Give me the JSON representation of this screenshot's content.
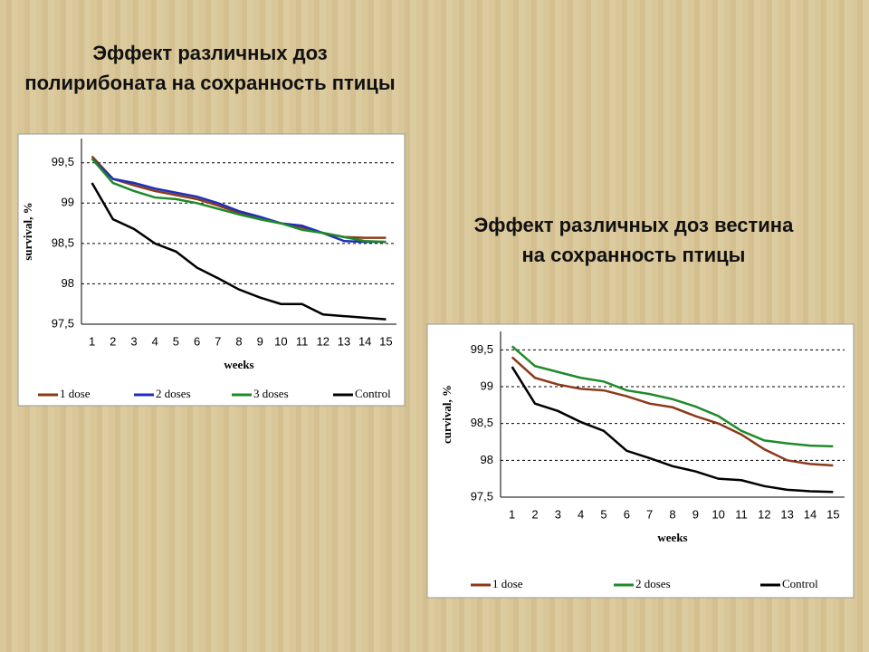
{
  "chart_data": [
    {
      "type": "line",
      "title": "Эффект различных  доз полирибоната на сохранность птицы",
      "x_label": "weeks",
      "y_label": "survival, %",
      "categories": [
        "1",
        "2",
        "3",
        "4",
        "5",
        "6",
        "7",
        "8",
        "9",
        "10",
        "11",
        "12",
        "13",
        "14",
        "15"
      ],
      "series": [
        {
          "name": "1 dose",
          "color": "#8b3a1a",
          "values": [
            99.58,
            99.3,
            99.22,
            99.15,
            99.1,
            99.05,
            98.97,
            98.88,
            98.8,
            98.75,
            98.7,
            98.63,
            98.58,
            98.57,
            98.57
          ]
        },
        {
          "name": "2 doses",
          "color": "#1f2fb8",
          "values": [
            99.55,
            99.3,
            99.25,
            99.18,
            99.13,
            99.08,
            99.0,
            98.9,
            98.83,
            98.75,
            98.72,
            98.63,
            98.53,
            98.52,
            98.52
          ]
        },
        {
          "name": "3 doses",
          "color": "#1f8a2a",
          "values": [
            99.55,
            99.25,
            99.15,
            99.07,
            99.05,
            99.0,
            98.93,
            98.86,
            98.8,
            98.75,
            98.67,
            98.63,
            98.58,
            98.53,
            98.52
          ]
        },
        {
          "name": "Control",
          "color": "#000000",
          "values": [
            99.25,
            98.8,
            98.68,
            98.5,
            98.4,
            98.2,
            98.07,
            97.93,
            97.83,
            97.75,
            97.75,
            97.62,
            97.6,
            97.58,
            97.56
          ]
        }
      ],
      "ylim": [
        97.5,
        99.8
      ],
      "yticks": [
        {
          "value": 97.5,
          "label": "97,5"
        },
        98,
        {
          "value": 98.5,
          "label": "98,5"
        },
        99,
        {
          "value": 99.5,
          "label": "99,5"
        }
      ],
      "grid": true
    },
    {
      "type": "line",
      "title": "Эффект различных  доз вестина на сохранность птицы",
      "x_label": "weeks",
      "y_label": "curvival, %",
      "categories": [
        "1",
        "2",
        "3",
        "4",
        "5",
        "6",
        "7",
        "8",
        "9",
        "10",
        "11",
        "12",
        "13",
        "14",
        "15"
      ],
      "series": [
        {
          "name": "1 dose",
          "color": "#8b3a1a",
          "values": [
            99.4,
            99.12,
            99.03,
            98.97,
            98.95,
            98.87,
            98.77,
            98.72,
            98.6,
            98.5,
            98.35,
            98.15,
            98.0,
            97.95,
            97.93
          ]
        },
        {
          "name": "2 doses",
          "color": "#1f8a2a",
          "values": [
            99.55,
            99.28,
            99.2,
            99.12,
            99.07,
            98.95,
            98.9,
            98.83,
            98.73,
            98.6,
            98.4,
            98.27,
            98.23,
            98.2,
            98.19
          ]
        },
        {
          "name": "Control",
          "color": "#000000",
          "values": [
            99.27,
            98.77,
            98.67,
            98.52,
            98.4,
            98.13,
            98.03,
            97.92,
            97.85,
            97.75,
            97.73,
            97.65,
            97.6,
            97.58,
            97.57
          ]
        }
      ],
      "ylim": [
        97.5,
        99.75
      ],
      "yticks": [
        {
          "value": 97.5,
          "label": "97,5"
        },
        98,
        {
          "value": 98.5,
          "label": "98,5"
        },
        99,
        {
          "value": 99.5,
          "label": "99,5"
        }
      ],
      "grid": true
    }
  ]
}
